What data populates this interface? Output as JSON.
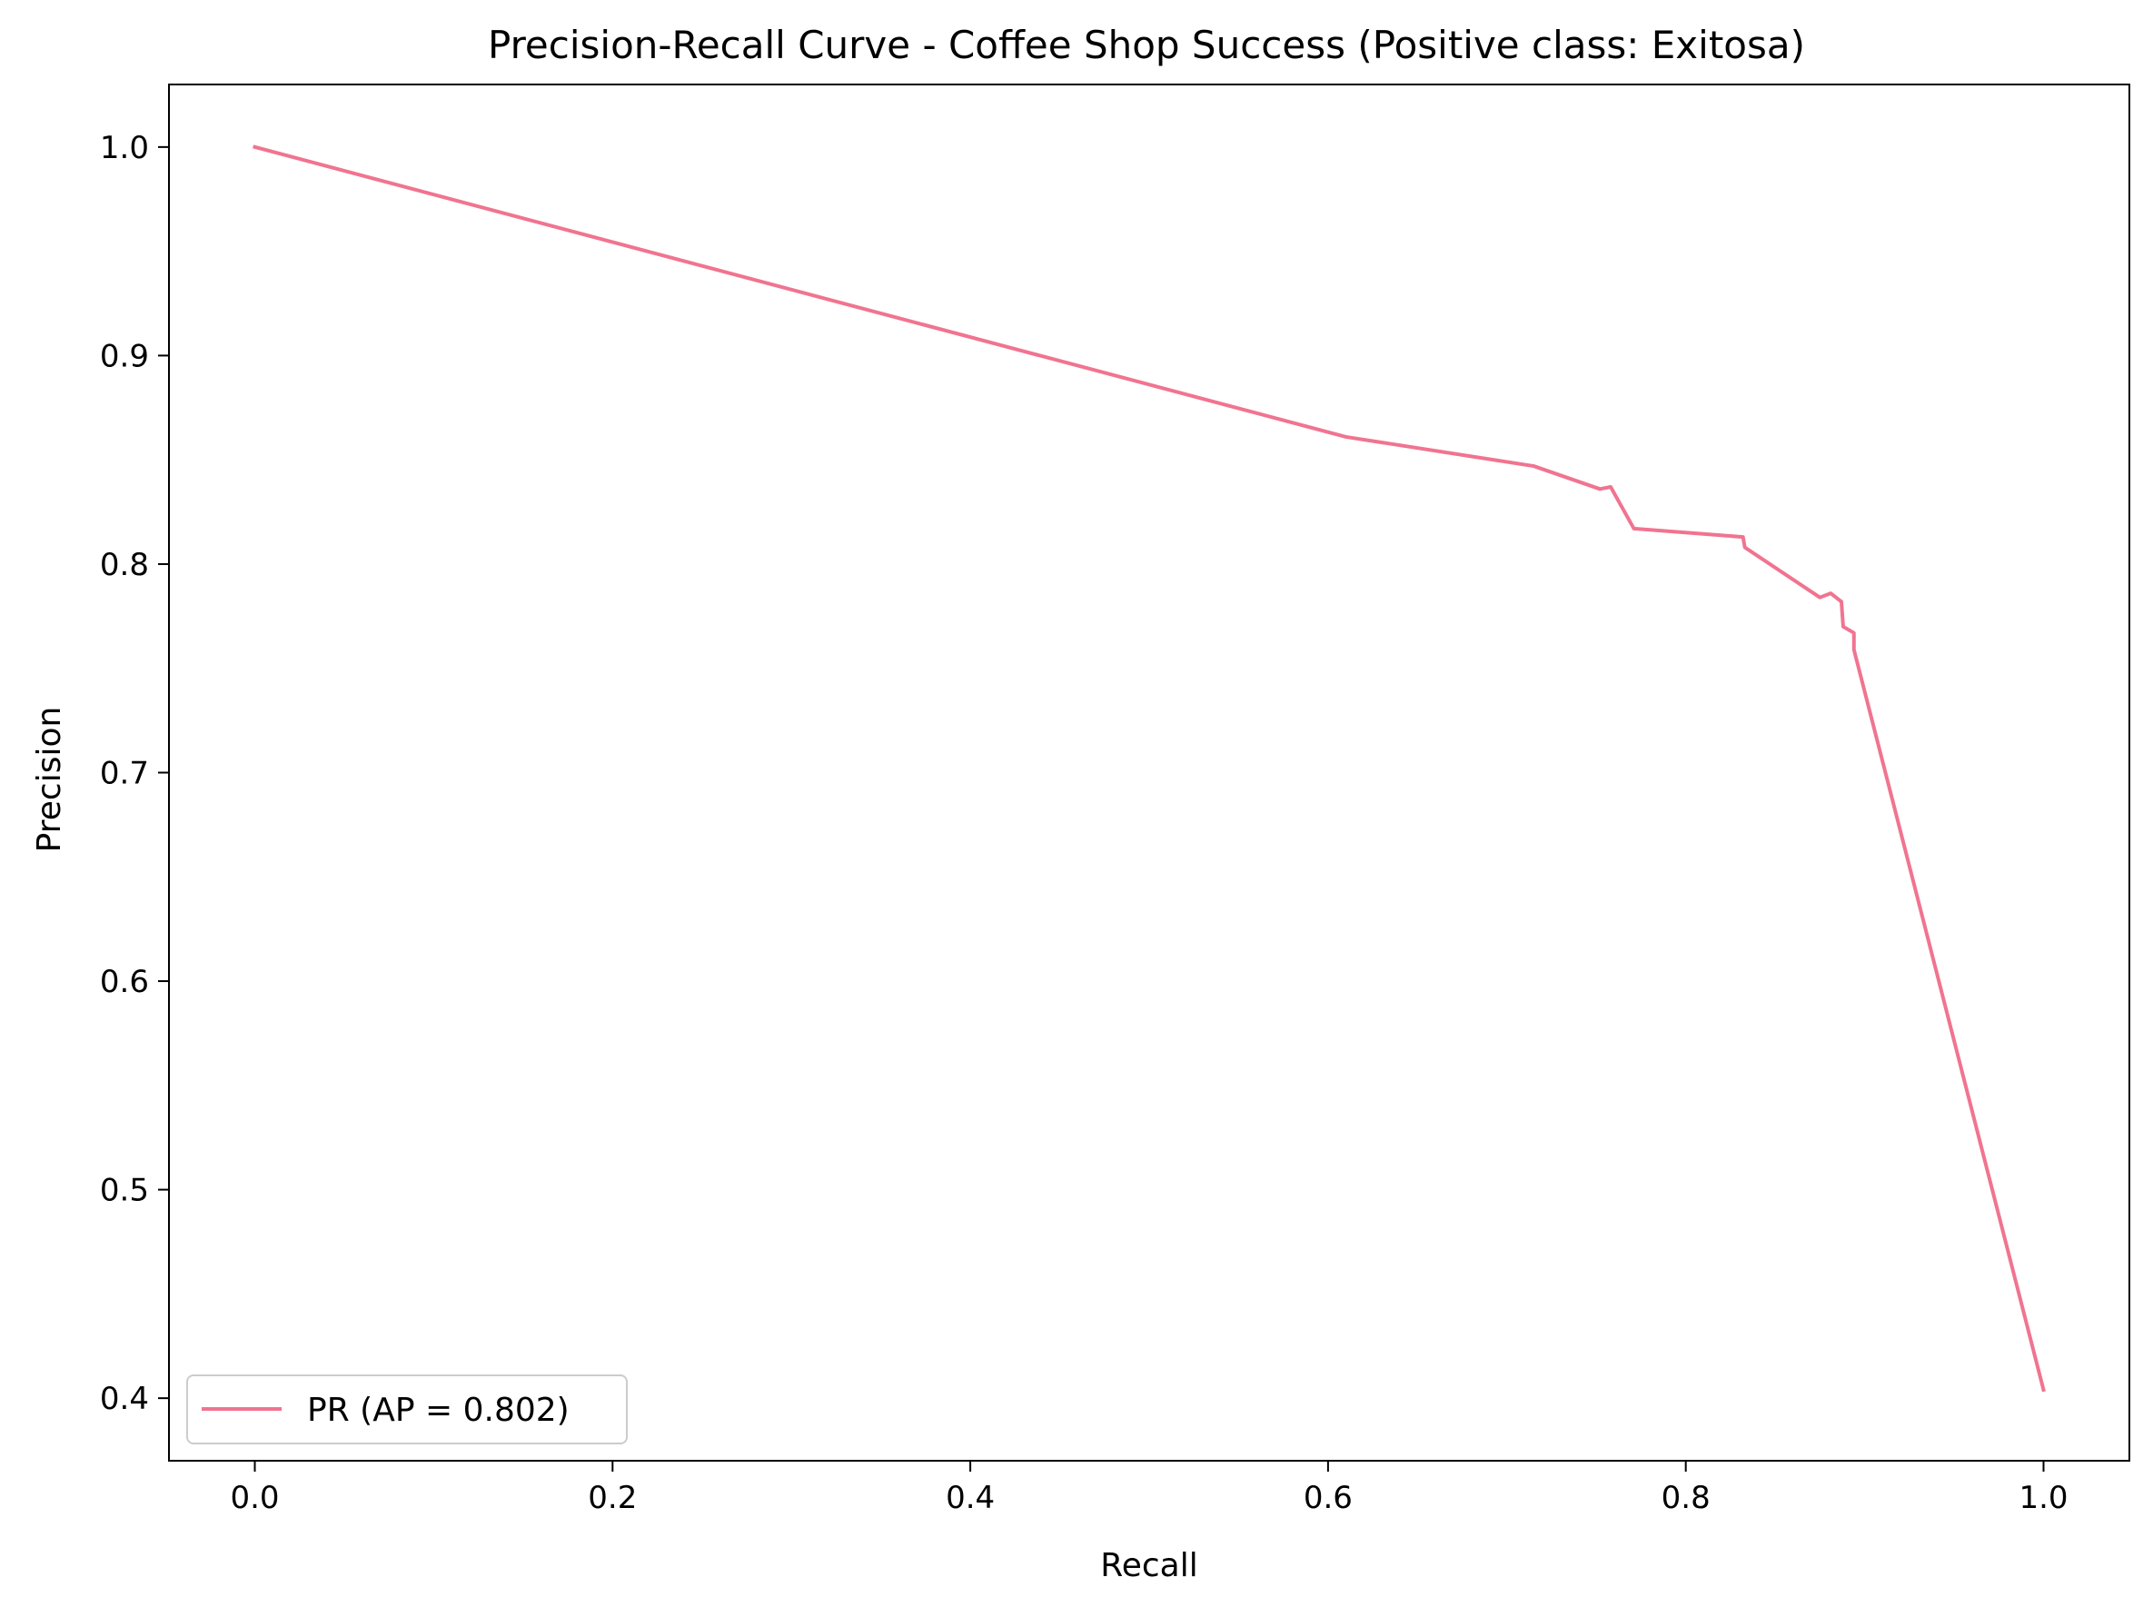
{
  "chart_data": {
    "type": "line",
    "title": "Precision-Recall Curve - Coffee Shop Success (Positive class: Exitosa)",
    "xlabel": "Recall",
    "ylabel": "Precision",
    "xlim": [
      -0.048,
      1.048
    ],
    "ylim": [
      0.37,
      1.03
    ],
    "x_ticks": [
      0.0,
      0.2,
      0.4,
      0.6,
      0.8,
      1.0
    ],
    "x_tick_labels": [
      "0.0",
      "0.2",
      "0.4",
      "0.6",
      "0.8",
      "1.0"
    ],
    "y_ticks": [
      0.4,
      0.5,
      0.6,
      0.7,
      0.8,
      0.9,
      1.0
    ],
    "y_tick_labels": [
      "0.4",
      "0.5",
      "0.6",
      "0.7",
      "0.8",
      "0.9",
      "1.0"
    ],
    "grid": false,
    "legend_position": "lower-left",
    "series": [
      {
        "name": "PR (AP = 0.802)",
        "color": "#f07490",
        "x": [
          0.0,
          0.61,
          0.715,
          0.752,
          0.758,
          0.771,
          0.832,
          0.833,
          0.875,
          0.881,
          0.887,
          0.888,
          0.894,
          0.894,
          1.0
        ],
        "y": [
          1.0,
          0.861,
          0.847,
          0.836,
          0.837,
          0.817,
          0.813,
          0.808,
          0.784,
          0.786,
          0.782,
          0.77,
          0.767,
          0.759,
          0.404
        ]
      }
    ]
  }
}
